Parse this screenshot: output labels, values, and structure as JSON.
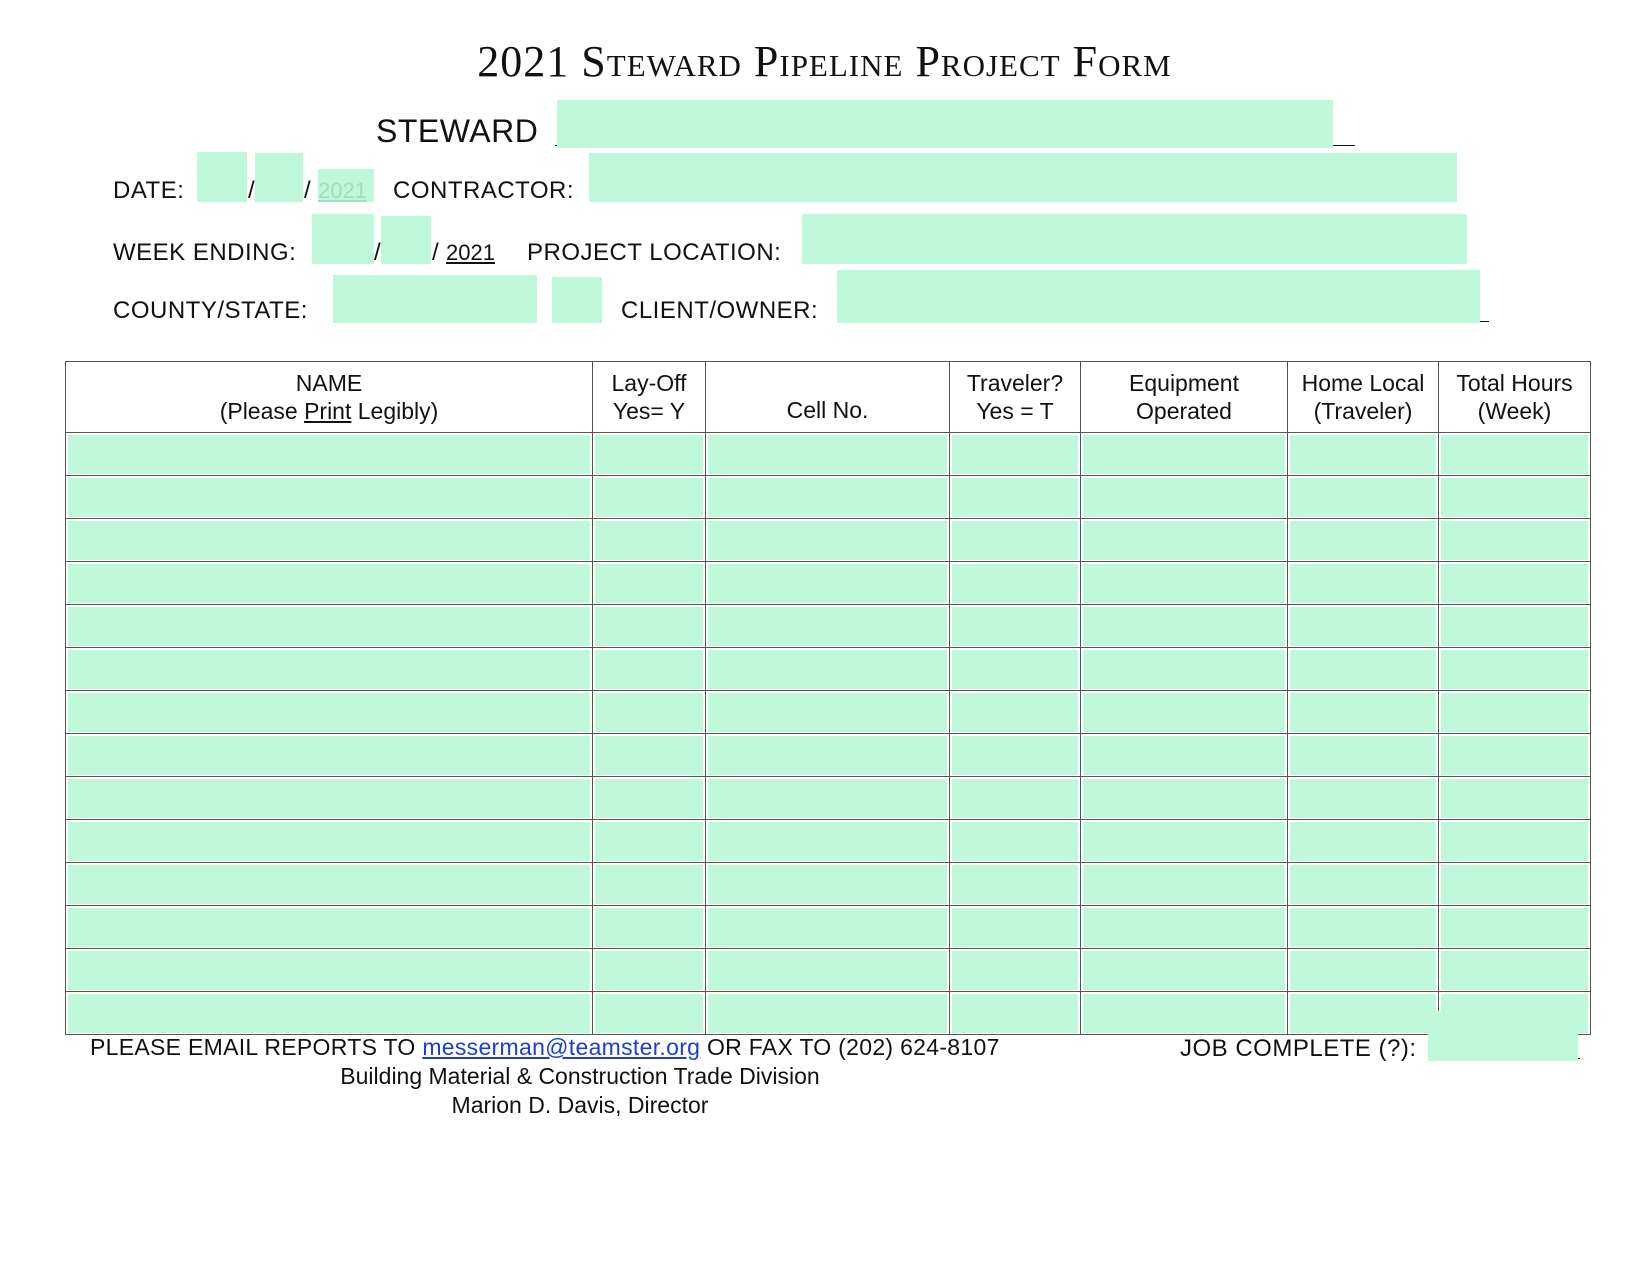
{
  "title": "2021 Steward Pipeline Project Form",
  "steward": {
    "label": "STEWARD"
  },
  "date": {
    "label": "DATE:",
    "year": "2021"
  },
  "contractor": {
    "label": "CONTRACTOR:"
  },
  "week_ending": {
    "label": "WEEK ENDING:",
    "year": "2021"
  },
  "project_location": {
    "label": "PROJECT LOCATION:"
  },
  "county_state": {
    "label": "COUNTY/STATE:"
  },
  "client_owner": {
    "label": "CLIENT/OWNER:"
  },
  "table": {
    "headers": {
      "name_line1": "NAME",
      "name_line2_pre": "(Please ",
      "name_line2_print": "Print",
      "name_line2_post": " Legibly)",
      "layoff_line1": "Lay-Off",
      "layoff_line2": "Yes= Y",
      "cell": "Cell No.",
      "traveler_line1": "Traveler?",
      "traveler_line2": "Yes = T",
      "equipment_line1": "Equipment",
      "equipment_line2": "Operated",
      "homelocal_line1": "Home Local",
      "homelocal_line2": "(Traveler)",
      "hours_line1": "Total Hours",
      "hours_line2": "(Week)"
    },
    "row_count": 14,
    "field_color": "#bff7da"
  },
  "footer": {
    "email_prefix": "PLEASE EMAIL REPORTS TO ",
    "email": "messerman@teamster.org",
    "fax": " OR FAX TO (202) 624-8107",
    "division": "Building Material & Construction Trade Division",
    "director": "Marion D. Davis, Director",
    "job_complete_label": "JOB COMPLETE (?):"
  }
}
